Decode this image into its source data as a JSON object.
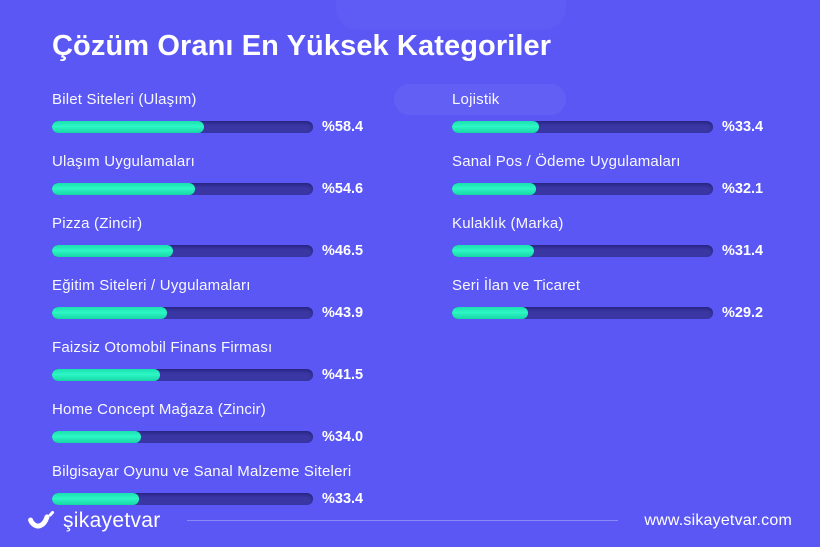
{
  "title": "Çözüm Oranı En Yüksek Kategoriler",
  "chart_data": {
    "type": "bar",
    "orientation": "horizontal",
    "title": "Çözüm Oranı En Yüksek Kategoriler",
    "value_unit": "percent",
    "value_prefix": "%",
    "xlim": [
      0,
      100
    ],
    "grid": false,
    "legend": false,
    "categories": [
      "Bilet Siteleri (Ulaşım)",
      "Ulaşım Uygulamaları",
      "Pizza (Zincir)",
      "Eğitim Siteleri / Uygulamaları",
      "Faizsiz Otomobil Finans Firması",
      "Home Concept Mağaza (Zincir)",
      "Bilgisayar Oyunu ve Sanal Malzeme Siteleri",
      "Lojistik",
      "Sanal Pos / Ödeme Uygulamaları",
      "Kulaklık (Marka)",
      "Seri İlan ve Ticaret"
    ],
    "values": [
      58.4,
      54.6,
      46.5,
      43.9,
      41.5,
      34.0,
      33.4,
      33.4,
      32.1,
      31.4,
      29.2
    ],
    "display_values": [
      "%58.4",
      "%54.6",
      "%46.5",
      "%43.9",
      "%41.5",
      "%34.0",
      "%33.4",
      "%33.4",
      "%32.1",
      "%31.4",
      "%29.2"
    ],
    "layout_columns": {
      "left": [
        0,
        1,
        2,
        3,
        4,
        5,
        6
      ],
      "right": [
        7,
        8,
        9,
        10
      ]
    }
  },
  "footer": {
    "brand": "şikayetvar",
    "url": "www.sikayetvar.com"
  },
  "colors": {
    "background": "#5a57f5",
    "bar_track": "#3a37a4",
    "bar_fill_start": "#1bdfb0",
    "bar_fill_mid": "#2df7c5",
    "bar_fill_end": "#17d6a6",
    "text": "#ffffff",
    "divider": "rgba(255,255,255,0.3)"
  }
}
